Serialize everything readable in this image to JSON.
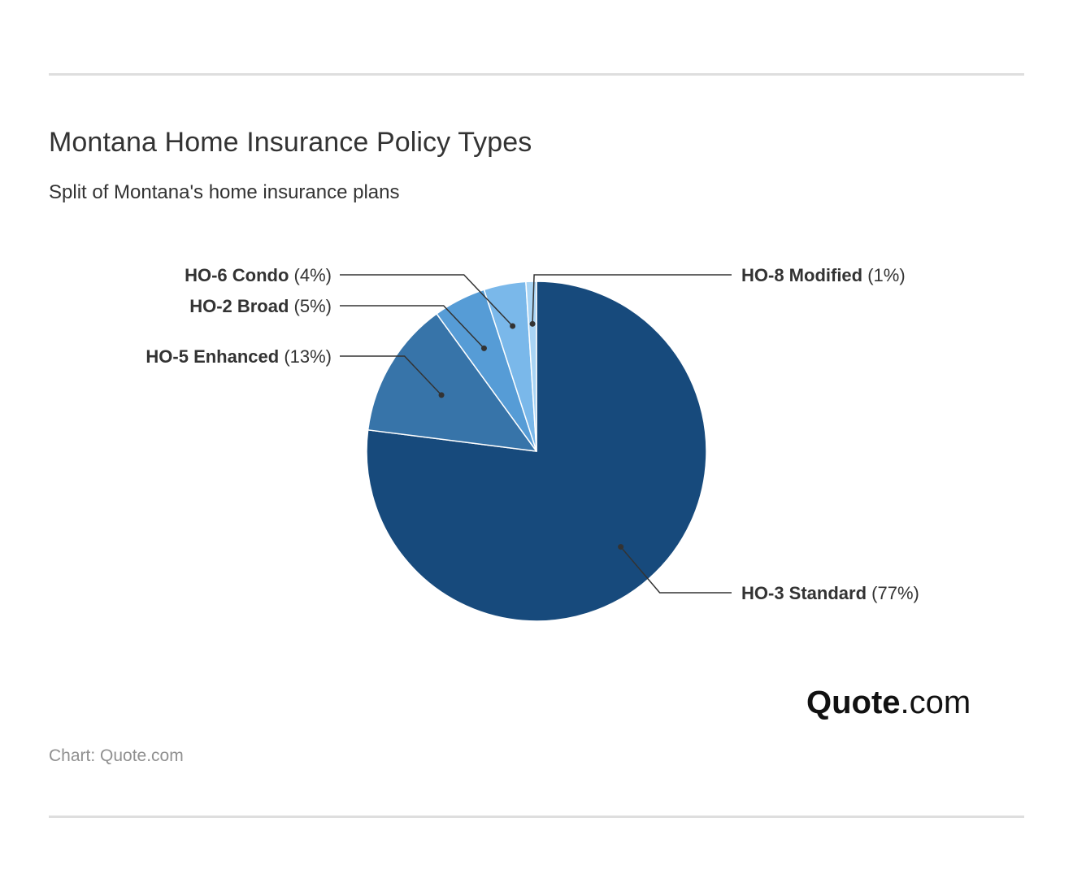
{
  "title": "Montana Home Insurance Policy Types",
  "subtitle": "Split of Montana's home insurance plans",
  "source": "Chart: Quote.com",
  "logo": {
    "brand": "Quote",
    "suffix": ".com"
  },
  "chart_data": {
    "type": "pie",
    "title": "Montana Home Insurance Policy Types",
    "subtitle": "Split of Montana's home insurance plans",
    "unit": "%",
    "slices": [
      {
        "name": "HO-3 Standard",
        "value": 77,
        "label": "(77%)",
        "color": "#174a7c"
      },
      {
        "name": "HO-5 Enhanced",
        "value": 13,
        "label": "(13%)",
        "color": "#3774a9"
      },
      {
        "name": "HO-2 Broad",
        "value": 5,
        "label": "(5%)",
        "color": "#569cd6"
      },
      {
        "name": "HO-6 Condo",
        "value": 4,
        "label": "(4%)",
        "color": "#7ab8ea"
      },
      {
        "name": "HO-8 Modified",
        "value": 1,
        "label": "(1%)",
        "color": "#a9d4f4"
      }
    ]
  }
}
